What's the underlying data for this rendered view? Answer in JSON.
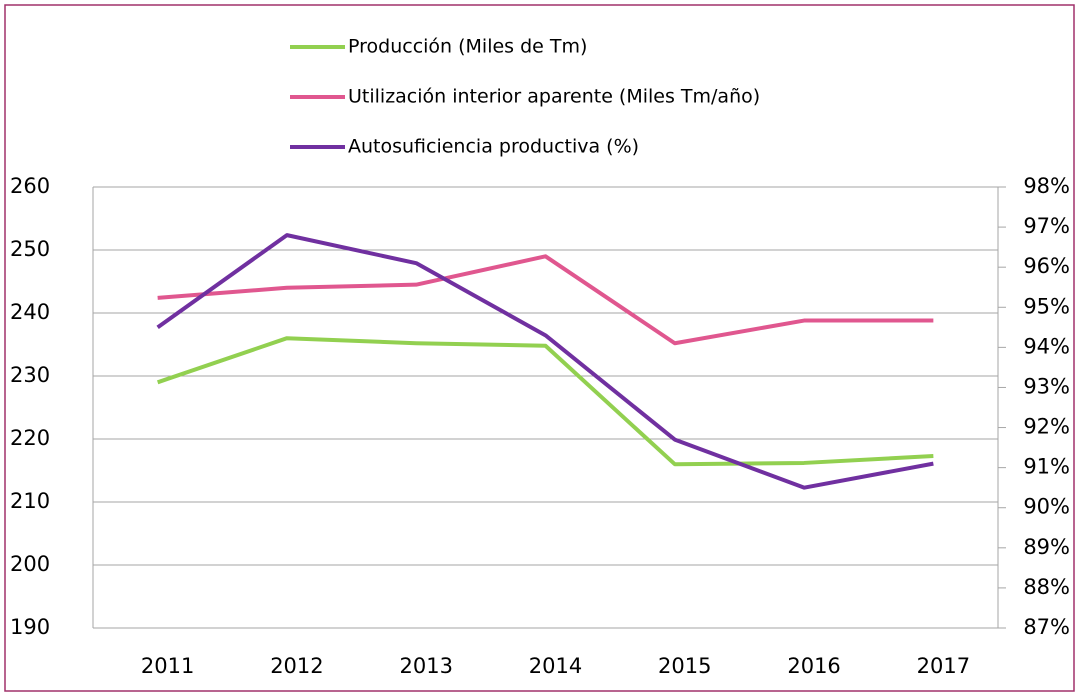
{
  "chart_data": {
    "type": "line",
    "categories": [
      "2011",
      "2012",
      "2013",
      "2014",
      "2015",
      "2016",
      "2017"
    ],
    "series": [
      {
        "name": "Producción (Miles de Tm)",
        "color": "#92d050",
        "values": [
          229,
          236,
          235.2,
          234.8,
          216,
          216.2,
          217.3
        ]
      },
      {
        "name": "Utilización interior aparente (Miles Tm/año)",
        "color": "#e0578f",
        "values": [
          242.4,
          244,
          244.5,
          249,
          235.2,
          238.8,
          238.8
        ]
      },
      {
        "name": "Autosuficiencia productiva (%)",
        "color": "#7030a0",
        "axis": "y2",
        "values": [
          94.5,
          96.8,
          96.1,
          94.3,
          91.7,
          90.5,
          91.1
        ]
      }
    ],
    "ylim": [
      190,
      260
    ],
    "yticks": [
      190,
      200,
      210,
      220,
      230,
      240,
      250,
      260
    ],
    "y2lim": [
      87,
      98
    ],
    "y2ticks": [
      {
        "value": 87,
        "label": "87%"
      },
      {
        "value": 88,
        "label": "88%"
      },
      {
        "value": 89,
        "label": "89%"
      },
      {
        "value": 90,
        "label": "90%"
      },
      {
        "value": 91,
        "label": "91%"
      },
      {
        "value": 92,
        "label": "92%"
      },
      {
        "value": 93,
        "label": "93%"
      },
      {
        "value": 94,
        "label": "94%"
      },
      {
        "value": 95,
        "label": "95%"
      },
      {
        "value": 96,
        "label": "96%"
      },
      {
        "value": 97,
        "label": "97%"
      },
      {
        "value": 98,
        "label": "98%"
      }
    ],
    "grid": true,
    "legend": "top"
  }
}
